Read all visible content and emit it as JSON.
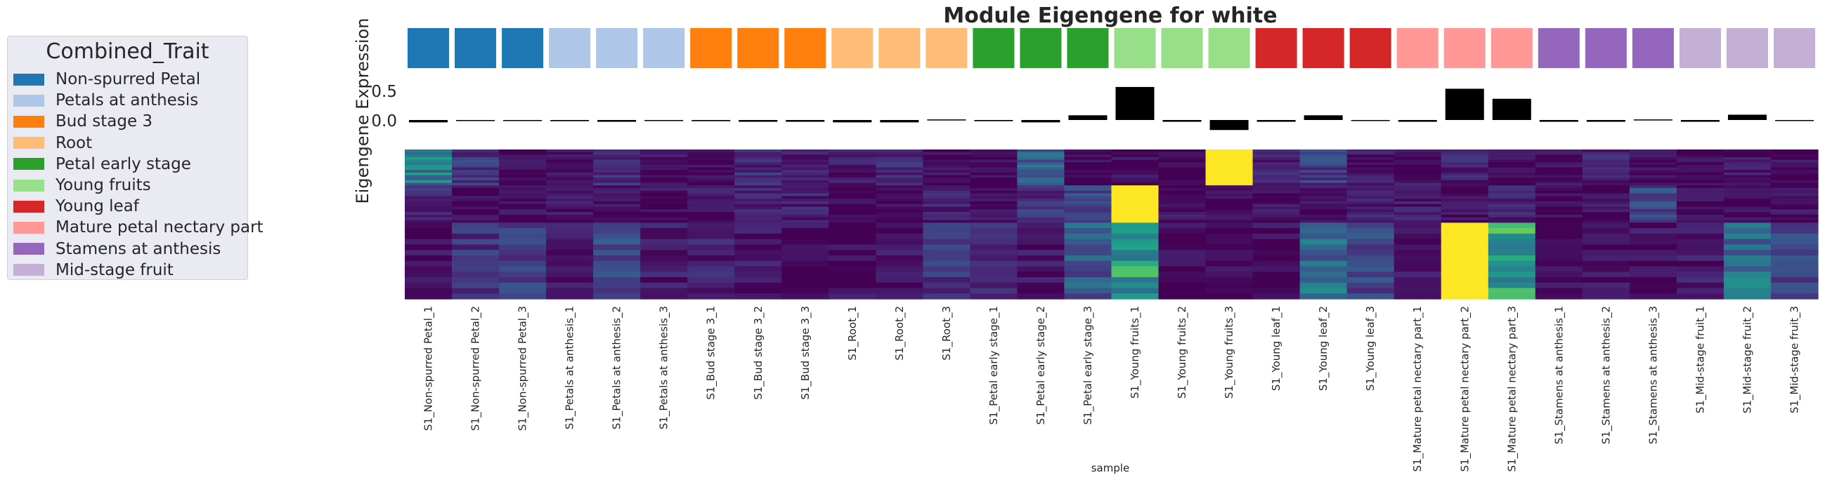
{
  "chart_data": {
    "type": "heatmap",
    "title": "Module Eigengene for white",
    "ylabel": "Eigengene Expression",
    "xlabel": "sample",
    "legend": {
      "title": "Combined_Trait",
      "placement": "left",
      "entries": [
        {
          "label": "Non-spurred Petal",
          "color": "#1f77b4"
        },
        {
          "label": "Petals at anthesis",
          "color": "#aec7e8"
        },
        {
          "label": "Bud stage 3",
          "color": "#ff7f0e"
        },
        {
          "label": "Root",
          "color": "#ffbb78"
        },
        {
          "label": "Petal early stage",
          "color": "#2ca02c"
        },
        {
          "label": "Young fruits",
          "color": "#98df8a"
        },
        {
          "label": "Young leaf",
          "color": "#d62728"
        },
        {
          "label": "Mature petal nectary part",
          "color": "#ff9896"
        },
        {
          "label": "Stamens at anthesis",
          "color": "#9467bd"
        },
        {
          "label": "Mid-stage fruit",
          "color": "#c5b0d5"
        }
      ]
    },
    "samples": [
      "S1_Non-spurred Petal_1",
      "S1_Non-spurred Petal_2",
      "S1_Non-spurred Petal_3",
      "S1_Petals at anthesis_1",
      "S1_Petals at anthesis_2",
      "S1_Petals at anthesis_3",
      "S1_Bud stage 3_1",
      "S1_Bud stage 3_2",
      "S1_Bud stage 3_3",
      "S1_Root_1",
      "S1_Root_2",
      "S1_Root_3",
      "S1_Petal early stage_1",
      "S1_Petal early stage_2",
      "S1_Petal early stage_3",
      "S1_Young fruits_1",
      "S1_Young fruits_2",
      "S1_Young fruits_3",
      "S1_Young leaf_1",
      "S1_Young leaf_2",
      "S1_Young leaf_3",
      "S1_Mature petal nectary part_1",
      "S1_Mature petal nectary part_2",
      "S1_Mature petal nectary part_3",
      "S1_Stamens at anthesis_1",
      "S1_Stamens at anthesis_2",
      "S1_Stamens at anthesis_3",
      "S1_Mid-stage fruit_1",
      "S1_Mid-stage fruit_2",
      "S1_Mid-stage fruit_3"
    ],
    "sample_trait_index": [
      0,
      0,
      0,
      1,
      1,
      1,
      2,
      2,
      2,
      3,
      3,
      3,
      4,
      4,
      4,
      5,
      5,
      5,
      6,
      6,
      6,
      7,
      7,
      7,
      8,
      8,
      8,
      9,
      9,
      9
    ],
    "eigengene": {
      "ylim": [
        -0.2,
        0.65
      ],
      "ticks": [
        0.0,
        0.5
      ],
      "tick_labels": [
        "0.0",
        "0.5"
      ],
      "values": [
        -0.04,
        -0.01,
        0.0,
        -0.02,
        -0.03,
        0.0,
        -0.02,
        -0.03,
        -0.03,
        -0.04,
        -0.04,
        0.01,
        -0.02,
        -0.04,
        0.08,
        0.56,
        -0.03,
        -0.17,
        -0.03,
        0.08,
        0.0,
        -0.03,
        0.53,
        0.36,
        -0.03,
        -0.03,
        0.01,
        -0.03,
        0.09,
        0.0
      ]
    },
    "heatmap": {
      "colormap": "viridis",
      "value_range": [
        0,
        1
      ],
      "row_bands": [
        {
          "gene_fraction": 0.24,
          "values": [
            0.4,
            0.16,
            0.03,
            0.04,
            0.14,
            0.04,
            0.03,
            0.12,
            0.06,
            0.07,
            0.11,
            0.03,
            0.02,
            0.33,
            0.02,
            0.03,
            0.02,
            1.0,
            0.08,
            0.18,
            0.06,
            0.04,
            0.09,
            0.04,
            0.03,
            0.08,
            0.02,
            0.04,
            0.05,
            0.03
          ]
        },
        {
          "gene_fraction": 0.25,
          "values": [
            0.13,
            0.02,
            0.03,
            0.05,
            0.04,
            0.04,
            0.05,
            0.08,
            0.09,
            0.02,
            0.04,
            0.09,
            0.03,
            0.15,
            0.24,
            1.0,
            0.04,
            0.03,
            0.06,
            0.06,
            0.08,
            0.07,
            0.03,
            0.09,
            0.03,
            0.05,
            0.21,
            0.03,
            0.03,
            0.06
          ]
        },
        {
          "gene_fraction": 0.51,
          "values": [
            0.04,
            0.14,
            0.2,
            0.05,
            0.2,
            0.06,
            0.09,
            0.06,
            0.03,
            0.03,
            0.04,
            0.15,
            0.1,
            0.05,
            0.28,
            0.55,
            0.02,
            0.02,
            0.03,
            0.35,
            0.22,
            0.05,
            1.0,
            0.6,
            0.04,
            0.04,
            0.04,
            0.06,
            0.35,
            0.22
          ]
        }
      ]
    }
  }
}
